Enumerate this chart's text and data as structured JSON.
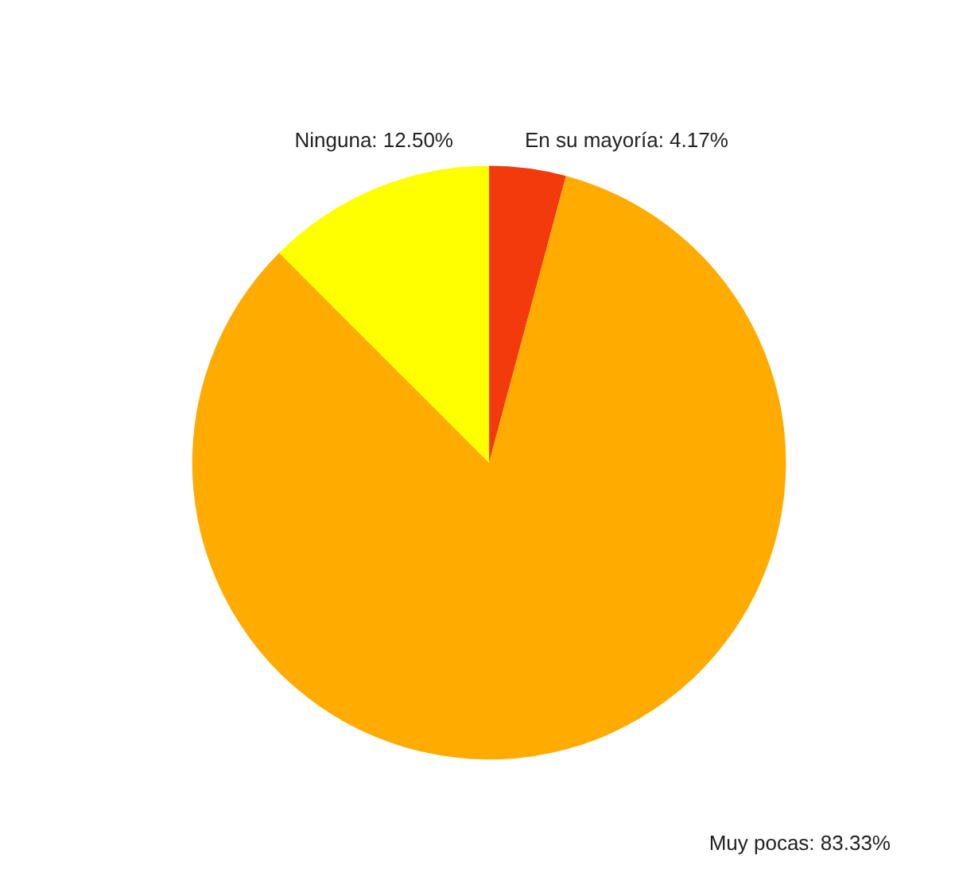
{
  "chart_data": {
    "type": "pie",
    "categories": [
      "En su mayoría",
      "Muy pocas",
      "Ninguna"
    ],
    "values": [
      4.17,
      83.33,
      12.5
    ],
    "value_labels": [
      "4.17%",
      "83.33%",
      "12.50%"
    ],
    "colors": [
      "#f23a0c",
      "#ffab00",
      "#ffff00"
    ],
    "legend": false
  }
}
